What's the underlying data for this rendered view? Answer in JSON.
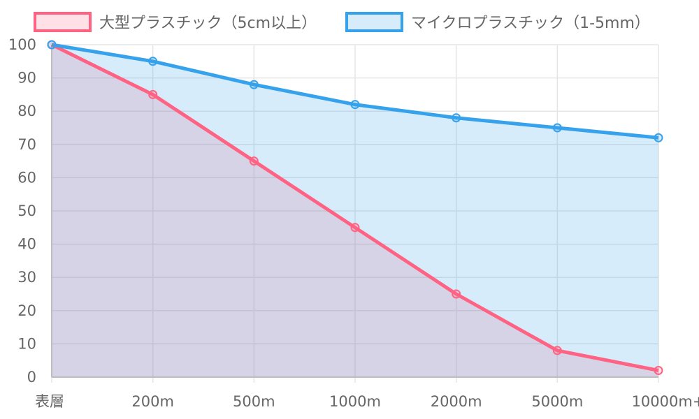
{
  "chart_data": {
    "type": "area",
    "categories": [
      "表層",
      "200m",
      "500m",
      "1000m",
      "2000m",
      "5000m",
      "10000m+"
    ],
    "series": [
      {
        "name": "大型プラスチック（5cm以上）",
        "values": [
          100,
          85,
          65,
          45,
          25,
          8,
          2
        ],
        "color": "#ff6384",
        "fill": "rgba(255,99,132,0.2)"
      },
      {
        "name": "マイクロプラスチック（1-5mm）",
        "values": [
          100,
          95,
          88,
          82,
          78,
          75,
          72
        ],
        "color": "#36a2eb",
        "fill": "rgba(54,162,235,0.2)"
      }
    ],
    "ylim": [
      0,
      100
    ],
    "yticks": [
      "0",
      "10",
      "20",
      "30",
      "40",
      "50",
      "60",
      "70",
      "80",
      "90",
      "100"
    ],
    "grid": true,
    "legend_position": "top"
  }
}
